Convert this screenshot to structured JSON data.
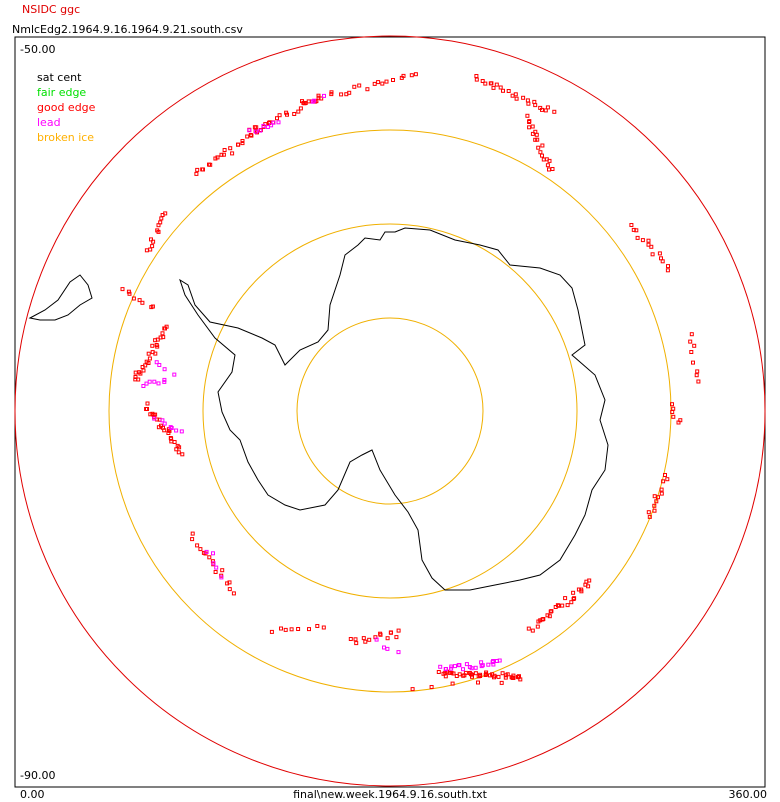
{
  "header": {
    "app": "NSIDC ggc",
    "file": "NmlcEdg2.1964.9.16.1964.9.21.south.csv"
  },
  "axes": {
    "top_left": "-50.00",
    "bottom_left": "-90.00",
    "x_min": "0.00",
    "x_max": "360.00",
    "footer": "final\\new.week.1964.9.16.south.txt"
  },
  "legend": [
    {
      "label": "sat cent",
      "color": "#000000"
    },
    {
      "label": "fair edge",
      "color": "#00e000"
    },
    {
      "label": "good edge",
      "color": "#ff0000"
    },
    {
      "label": "lead",
      "color": "#ff00ff"
    },
    {
      "label": "broken ice",
      "color": "#ffb000"
    }
  ]
}
